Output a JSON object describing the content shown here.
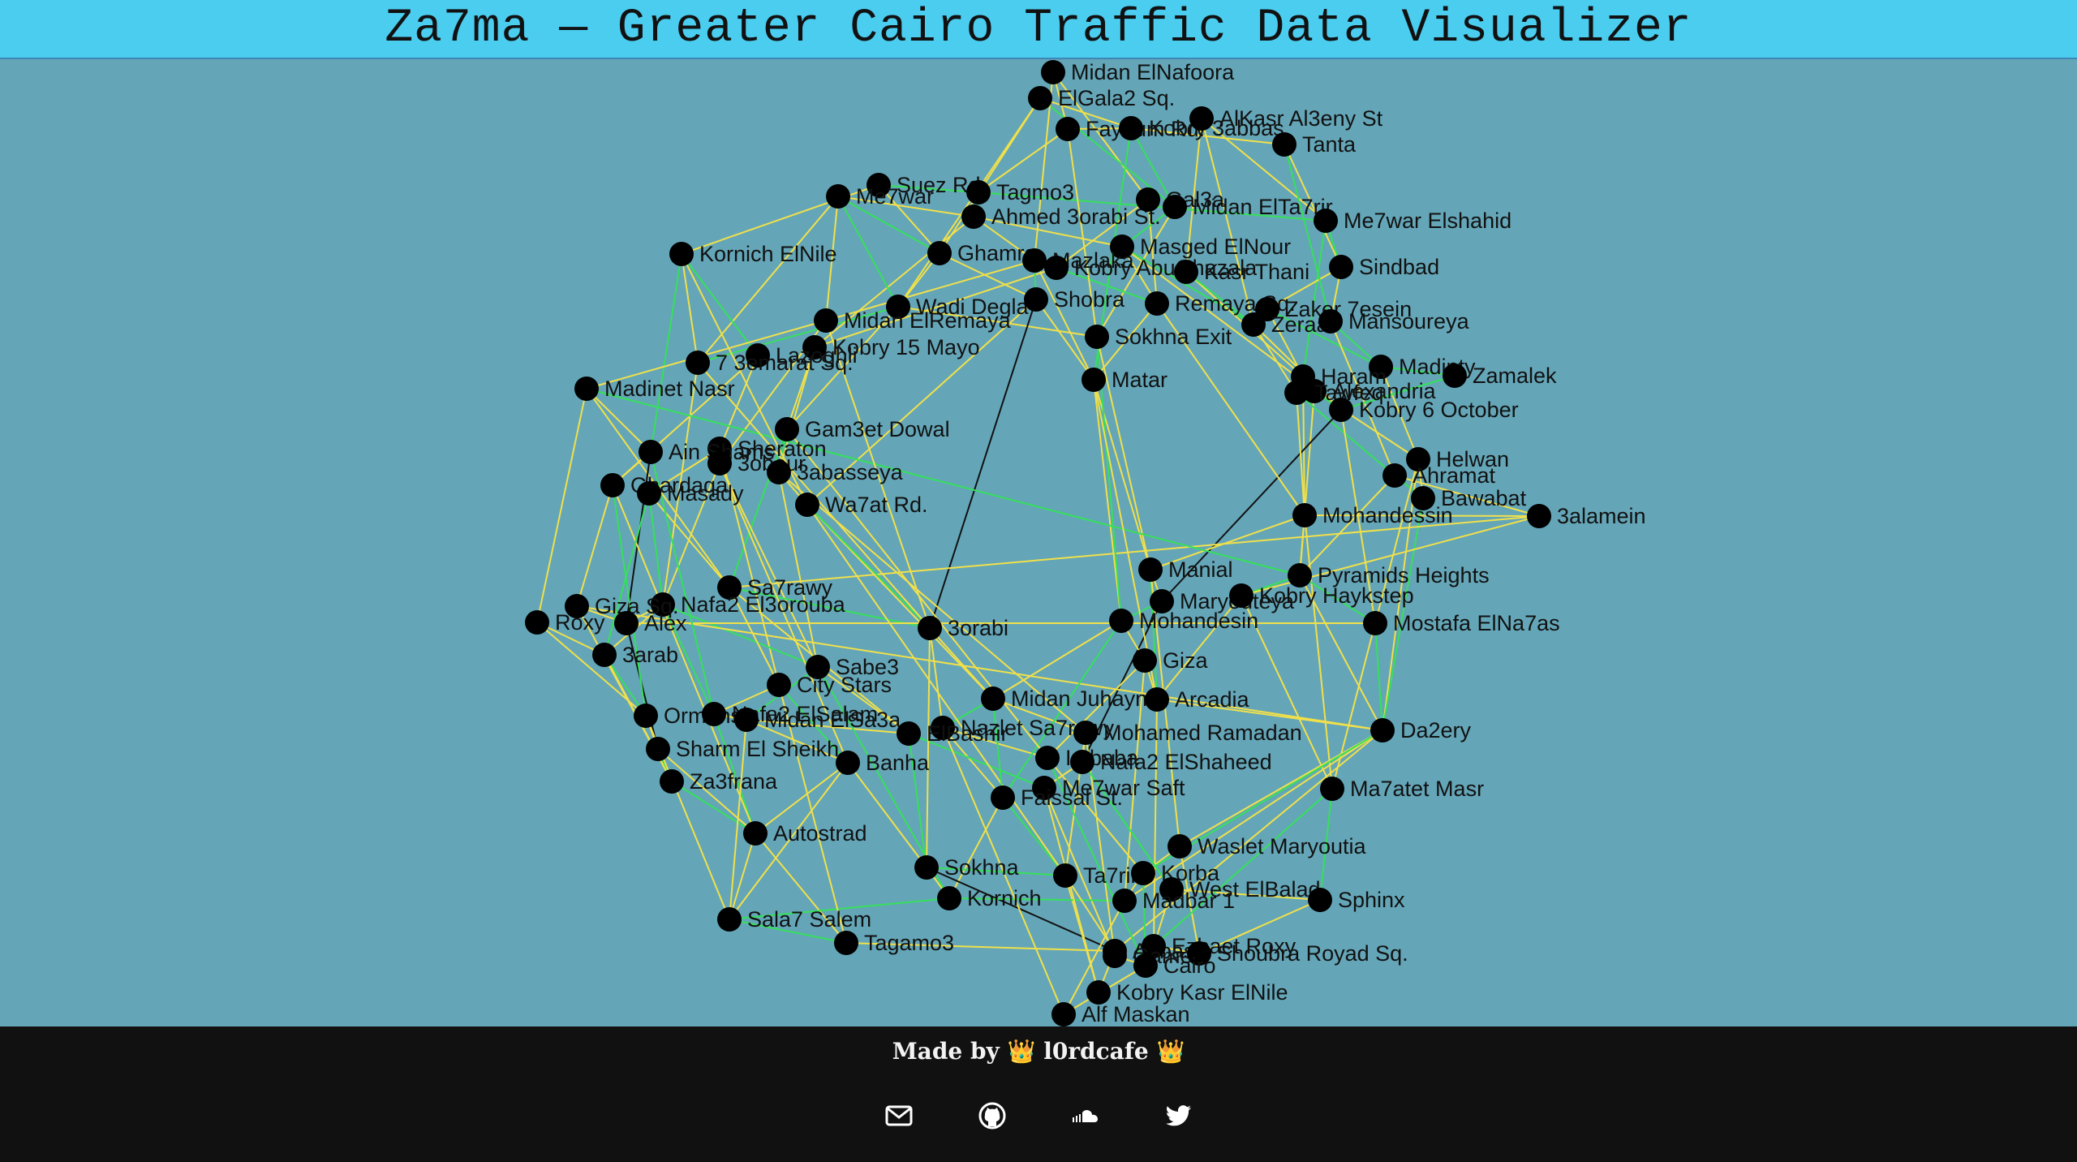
{
  "header": {
    "title": "Za7ma — Greater Cairo Traffic Data Visualizer"
  },
  "graph": {
    "colors": {
      "background": "#64a6b8",
      "edge_yellow": "#f1e04a",
      "edge_green": "#36e05a",
      "edge_black": "#111111",
      "node": "#000000"
    },
    "nodes": [
      {
        "id": 0,
        "label": "Midan ElNafoora"
      },
      {
        "id": 1,
        "label": "ElGala2 Sq."
      },
      {
        "id": 2,
        "label": "Fayoum Rd."
      },
      {
        "id": 3,
        "label": "Kobry 3abbas"
      },
      {
        "id": 4,
        "label": "AlKasr Al3eny St"
      },
      {
        "id": 5,
        "label": "Tanta"
      },
      {
        "id": 6,
        "label": "Suez Rd"
      },
      {
        "id": 7,
        "label": "Me7war"
      },
      {
        "id": 8,
        "label": "Tagmo3"
      },
      {
        "id": 9,
        "label": "Ahmed 3orabi St."
      },
      {
        "id": 10,
        "label": "Gal3a"
      },
      {
        "id": 11,
        "label": "Midan ElTa7rir"
      },
      {
        "id": 12,
        "label": "Me7war Elshahid"
      },
      {
        "id": 13,
        "label": "Kornich ElNile"
      },
      {
        "id": 14,
        "label": "Ghamra"
      },
      {
        "id": 15,
        "label": "Masged ElNour"
      },
      {
        "id": 16,
        "label": "Mazlaka"
      },
      {
        "id": 17,
        "label": "Kobry AbuGhazala"
      },
      {
        "id": 18,
        "label": "Kasr Thani"
      },
      {
        "id": 19,
        "label": "Sindbad"
      },
      {
        "id": 20,
        "label": "Wadi Degla"
      },
      {
        "id": 21,
        "label": "Shobra"
      },
      {
        "id": 22,
        "label": "Remaya Sq."
      },
      {
        "id": 23,
        "label": "Zaker 7esein"
      },
      {
        "id": 24,
        "label": "Zeraa"
      },
      {
        "id": 25,
        "label": "Mansoureya"
      },
      {
        "id": 26,
        "label": "Midan ElRemaya"
      },
      {
        "id": 27,
        "label": "Kobry 15 Mayo"
      },
      {
        "id": 28,
        "label": "Sokhna Exit"
      },
      {
        "id": 29,
        "label": "Lazoghli"
      },
      {
        "id": 30,
        "label": "7 3emarat Sq."
      },
      {
        "id": 31,
        "label": "Madinty"
      },
      {
        "id": 32,
        "label": "Zamalek"
      },
      {
        "id": 33,
        "label": "Haram"
      },
      {
        "id": 34,
        "label": "Alexandria"
      },
      {
        "id": 35,
        "label": "Tawfeq"
      },
      {
        "id": 36,
        "label": "Matar"
      },
      {
        "id": 37,
        "label": "Kobry 6 October"
      },
      {
        "id": 38,
        "label": "Madinet Nasr"
      },
      {
        "id": 39,
        "label": "Gam3et Dowal"
      },
      {
        "id": 40,
        "label": "Sheraton"
      },
      {
        "id": 41,
        "label": "Ain Shams"
      },
      {
        "id": 42,
        "label": "3obour"
      },
      {
        "id": 43,
        "label": "3abasseya"
      },
      {
        "id": 44,
        "label": "Ghardaqa"
      },
      {
        "id": 45,
        "label": "Masady"
      },
      {
        "id": 46,
        "label": "Helwan"
      },
      {
        "id": 47,
        "label": "Ahramat"
      },
      {
        "id": 48,
        "label": "Bawabat"
      },
      {
        "id": 49,
        "label": "Wa7at Rd."
      },
      {
        "id": 50,
        "label": "Mohandessin"
      },
      {
        "id": 51,
        "label": "3alamein"
      },
      {
        "id": 52,
        "label": "Manial"
      },
      {
        "id": 53,
        "label": "Pyramids Heights"
      },
      {
        "id": 54,
        "label": "Sa7rawy"
      },
      {
        "id": 55,
        "label": "Maryouteya"
      },
      {
        "id": 56,
        "label": "Kobry Haykstep"
      },
      {
        "id": 57,
        "label": "Nafa2 El3orouba"
      },
      {
        "id": 58,
        "label": "Giza Sq."
      },
      {
        "id": 59,
        "label": "Roxy"
      },
      {
        "id": 60,
        "label": "Alex"
      },
      {
        "id": 61,
        "label": "Mohandesin"
      },
      {
        "id": 62,
        "label": "Mostafa ElNa7as"
      },
      {
        "id": 63,
        "label": "3orabi"
      },
      {
        "id": 64,
        "label": "3arab"
      },
      {
        "id": 65,
        "label": "Giza"
      },
      {
        "id": 66,
        "label": "Sabe3"
      },
      {
        "id": 67,
        "label": "City Stars"
      },
      {
        "id": 68,
        "label": "Midan Juhayna"
      },
      {
        "id": 69,
        "label": "Arcadia"
      },
      {
        "id": 70,
        "label": "Ormans"
      },
      {
        "id": 71,
        "label": "Nafa2 ElSalam"
      },
      {
        "id": 72,
        "label": "Midan ElSa3a"
      },
      {
        "id": 73,
        "label": "Da2ery"
      },
      {
        "id": 74,
        "label": "Nazlet Sa7rawy"
      },
      {
        "id": 75,
        "label": "ElBashir"
      },
      {
        "id": 76,
        "label": "Mohamed Ramadan"
      },
      {
        "id": 77,
        "label": "Sharm El Sheikh"
      },
      {
        "id": 78,
        "label": "Banha"
      },
      {
        "id": 79,
        "label": "Imbaba"
      },
      {
        "id": 80,
        "label": "Nafa2 ElShaheed"
      },
      {
        "id": 81,
        "label": "Za3frana"
      },
      {
        "id": 82,
        "label": "Me7war Saft"
      },
      {
        "id": 83,
        "label": "Faissal St."
      },
      {
        "id": 84,
        "label": "Ma7atet Masr"
      },
      {
        "id": 85,
        "label": "Autostrad"
      },
      {
        "id": 86,
        "label": "Waslet Maryoutia"
      },
      {
        "id": 87,
        "label": "Sokhna"
      },
      {
        "id": 88,
        "label": "Ta7rir"
      },
      {
        "id": 89,
        "label": "Korba"
      },
      {
        "id": 90,
        "label": "West ElBalad"
      },
      {
        "id": 91,
        "label": "Kornich"
      },
      {
        "id": 92,
        "label": "Madbar 1"
      },
      {
        "id": 93,
        "label": "Sphinx"
      },
      {
        "id": 94,
        "label": "Sala7 Salem"
      },
      {
        "id": 95,
        "label": "Tagamo3"
      },
      {
        "id": 96,
        "label": "Abbas"
      },
      {
        "id": 97,
        "label": "Ezbaet Roxy"
      },
      {
        "id": 98,
        "label": "Gameat"
      },
      {
        "id": 99,
        "label": "Shoubra Royad Sq."
      },
      {
        "id": 100,
        "label": "Cairo"
      },
      {
        "id": 101,
        "label": "Kobry Kasr ElNile"
      },
      {
        "id": 102,
        "label": "Alf Maskan"
      }
    ]
  },
  "footer": {
    "made_by": "Made by",
    "crown_left": "👑",
    "author": "l0rdcafe",
    "crown_right": "👑",
    "links": [
      {
        "name": "email-icon",
        "label": "Email"
      },
      {
        "name": "github-icon",
        "label": "GitHub"
      },
      {
        "name": "soundcloud-icon",
        "label": "SoundCloud"
      },
      {
        "name": "twitter-icon",
        "label": "Twitter"
      }
    ]
  }
}
